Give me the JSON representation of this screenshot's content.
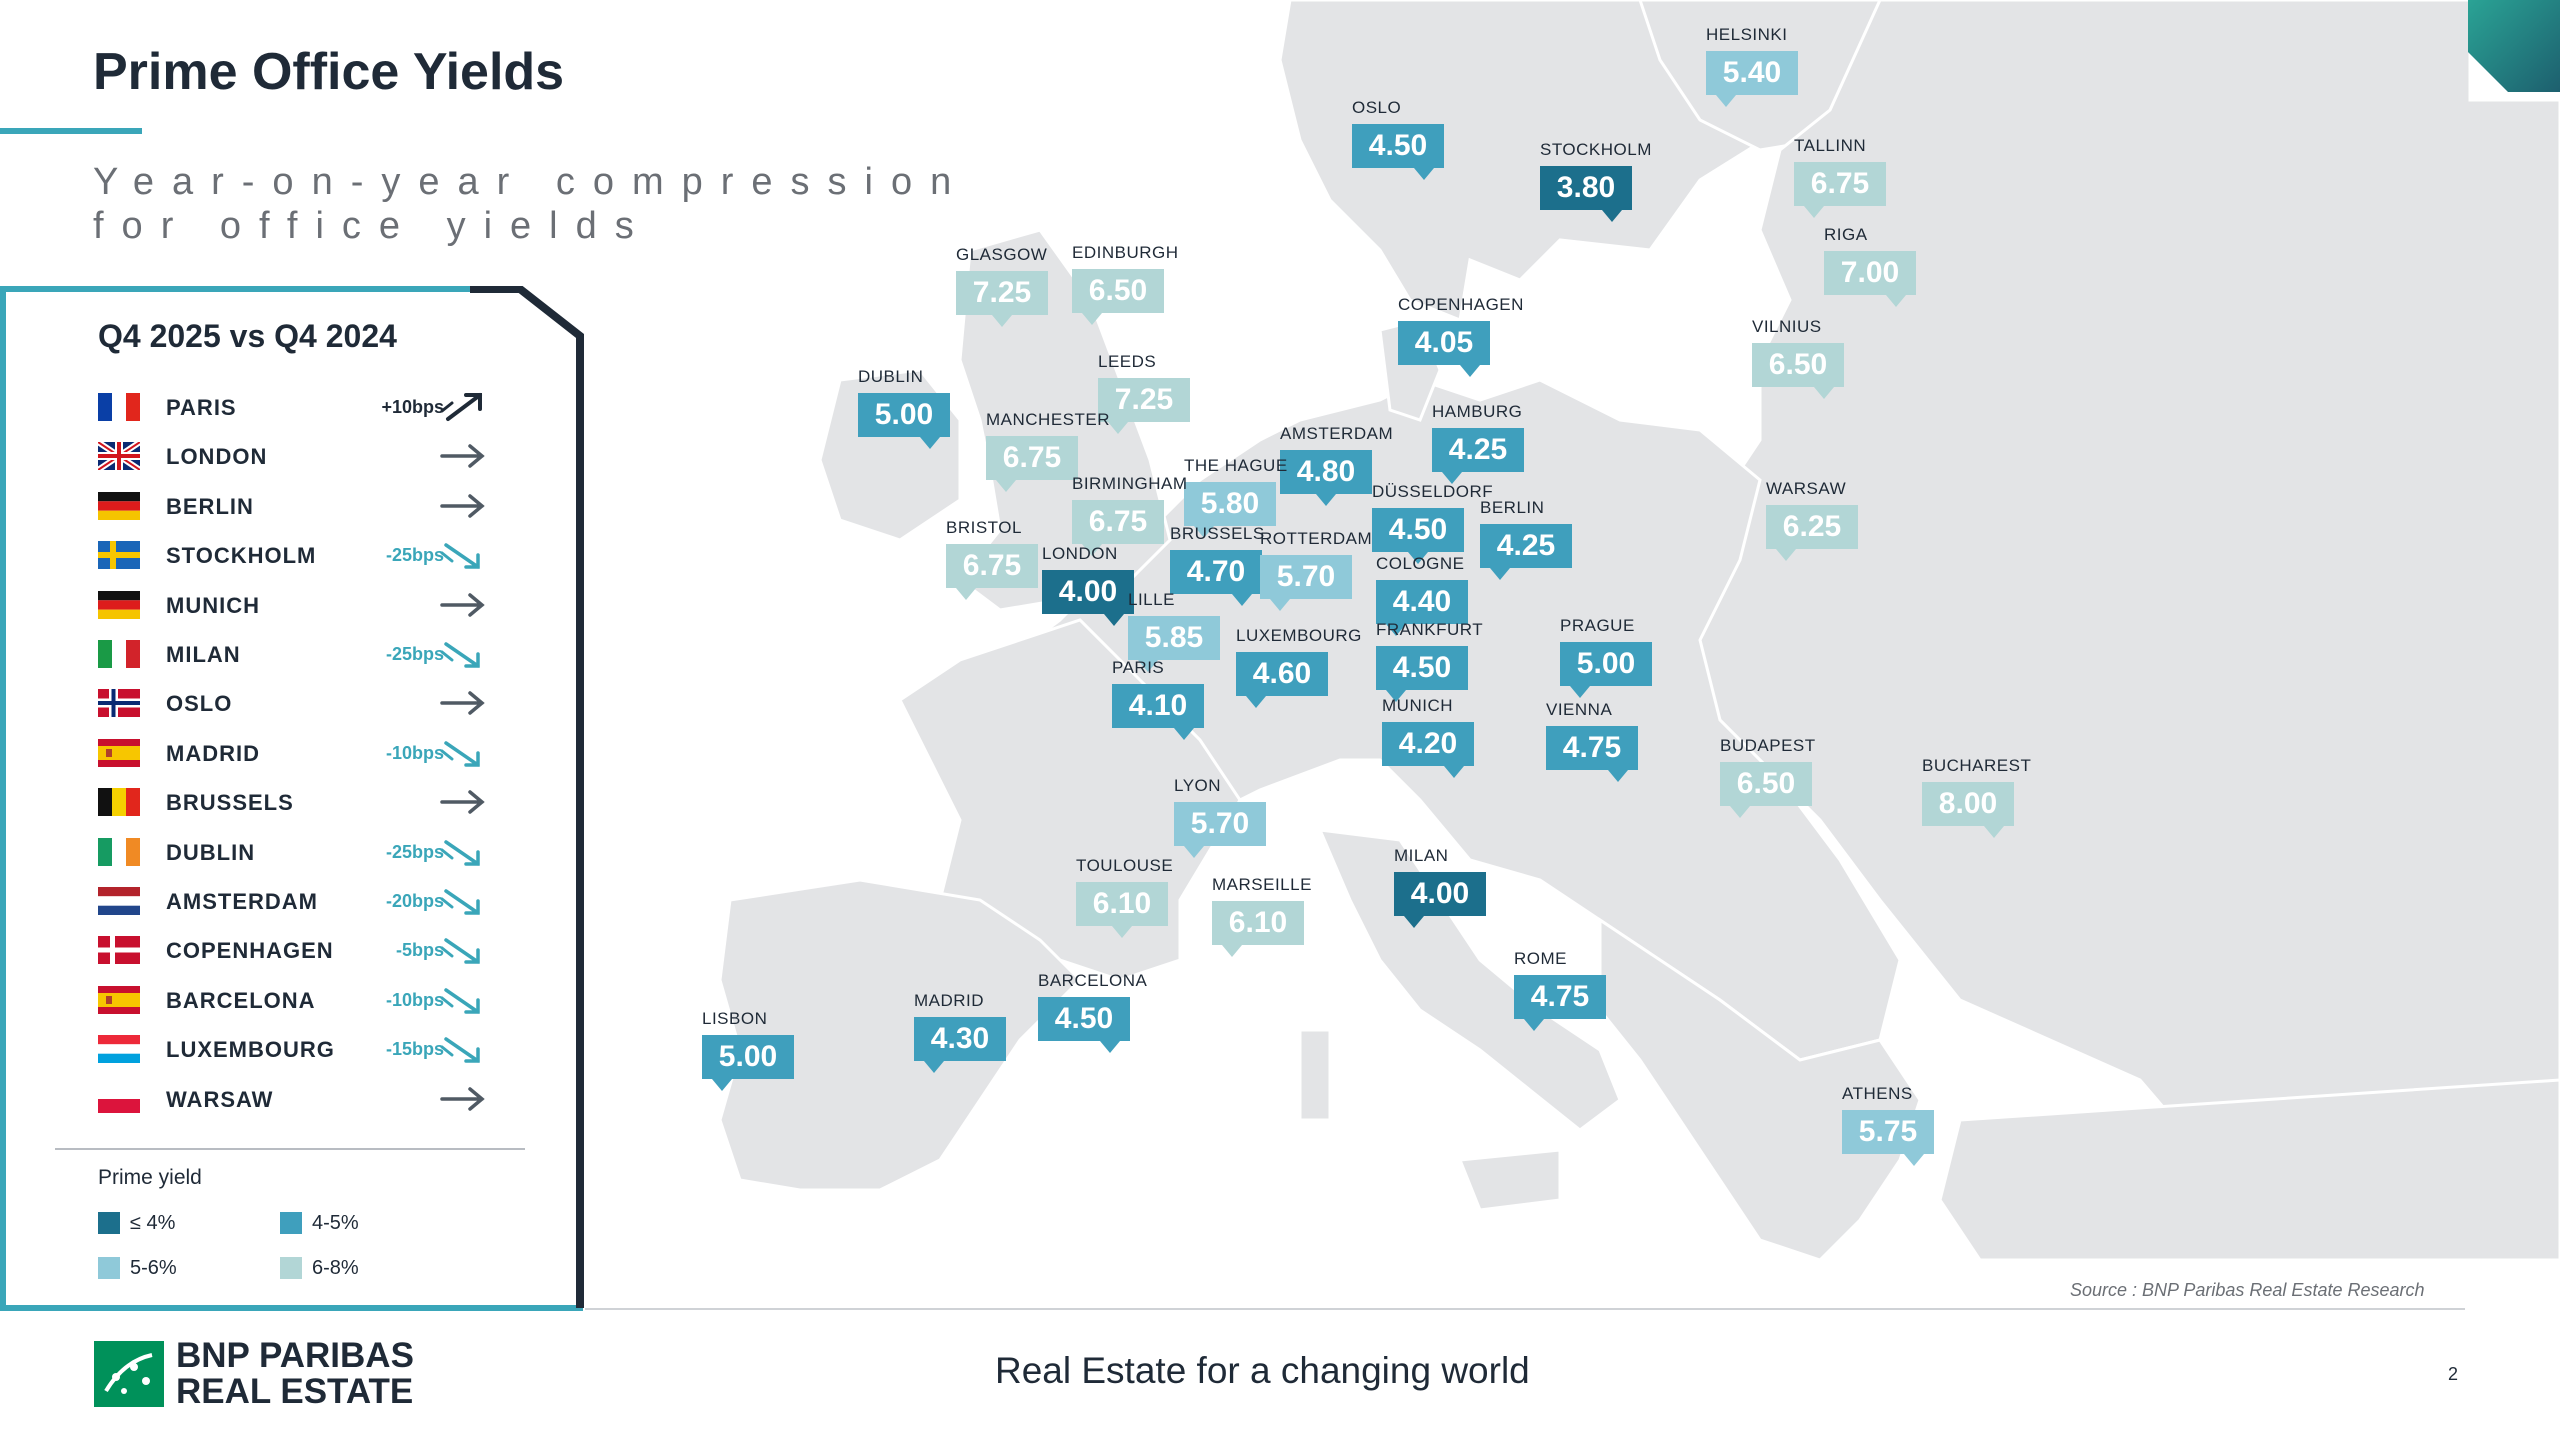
{
  "title": "Prime Office Yields",
  "subtitle": "Year-on-year compression for office yields",
  "panel": {
    "heading": "Q4 2025 vs Q4 2024",
    "rows": [
      {
        "city": "PARIS",
        "flag": "fr",
        "trend": "up",
        "change": "+10bps"
      },
      {
        "city": "LONDON",
        "flag": "uk",
        "trend": "flat",
        "change": ""
      },
      {
        "city": "BERLIN",
        "flag": "de",
        "trend": "flat",
        "change": ""
      },
      {
        "city": "STOCKHOLM",
        "flag": "se",
        "trend": "down",
        "change": "-25bps"
      },
      {
        "city": "MUNICH",
        "flag": "de",
        "trend": "flat",
        "change": ""
      },
      {
        "city": "MILAN",
        "flag": "it",
        "trend": "down",
        "change": "-25bps"
      },
      {
        "city": "OSLO",
        "flag": "no",
        "trend": "flat",
        "change": ""
      },
      {
        "city": "MADRID",
        "flag": "es",
        "trend": "down",
        "change": "-10bps"
      },
      {
        "city": "BRUSSELS",
        "flag": "be",
        "trend": "flat",
        "change": ""
      },
      {
        "city": "DUBLIN",
        "flag": "ie",
        "trend": "down",
        "change": "-25bps"
      },
      {
        "city": "AMSTERDAM",
        "flag": "nl",
        "trend": "down",
        "change": "-20bps"
      },
      {
        "city": "COPENHAGEN",
        "flag": "dk",
        "trend": "down",
        "change": "-5bps"
      },
      {
        "city": "BARCELONA",
        "flag": "es",
        "trend": "down",
        "change": "-10bps"
      },
      {
        "city": "LUXEMBOURG",
        "flag": "lu",
        "trend": "down",
        "change": "-15bps"
      },
      {
        "city": "WARSAW",
        "flag": "pl",
        "trend": "flat",
        "change": ""
      }
    ],
    "legend": {
      "title": "Prime yield",
      "items": [
        {
          "label": "≤ 4%",
          "color": "#1c6f8c"
        },
        {
          "label": "4-5%",
          "color": "#3f9fbd"
        },
        {
          "label": "5-6%",
          "color": "#8fc9d9"
        },
        {
          "label": "6-8%",
          "color": "#b2d6d6"
        }
      ]
    }
  },
  "colors": {
    "band1": "#1c6f8c",
    "band2": "#3f9fbd",
    "band3": "#8fc9d9",
    "band4": "#b2d6d6",
    "accent": "#3aa6b9"
  },
  "cities": [
    {
      "name": "HELSINKI",
      "yield": "5.40",
      "band": 3
    },
    {
      "name": "OSLO",
      "yield": "4.50",
      "band": 2
    },
    {
      "name": "STOCKHOLM",
      "yield": "3.80",
      "band": 1
    },
    {
      "name": "TALLINN",
      "yield": "6.75",
      "band": 4
    },
    {
      "name": "RIGA",
      "yield": "7.00",
      "band": 4
    },
    {
      "name": "GLASGOW",
      "yield": "7.25",
      "band": 4
    },
    {
      "name": "EDINBURGH",
      "yield": "6.50",
      "band": 4
    },
    {
      "name": "COPENHAGEN",
      "yield": "4.05",
      "band": 2
    },
    {
      "name": "VILNIUS",
      "yield": "6.50",
      "band": 4
    },
    {
      "name": "DUBLIN",
      "yield": "5.00",
      "band": 2
    },
    {
      "name": "LEEDS",
      "yield": "7.25",
      "band": 4
    },
    {
      "name": "MANCHESTER",
      "yield": "6.75",
      "band": 4
    },
    {
      "name": "AMSTERDAM",
      "yield": "4.80",
      "band": 2
    },
    {
      "name": "HAMBURG",
      "yield": "4.25",
      "band": 2
    },
    {
      "name": "THE HAGUE",
      "yield": "5.80",
      "band": 3
    },
    {
      "name": "BIRMINGHAM",
      "yield": "6.75",
      "band": 4
    },
    {
      "name": "WARSAW",
      "yield": "6.25",
      "band": 4
    },
    {
      "name": "DÜSSELDORF",
      "yield": "4.50",
      "band": 2
    },
    {
      "name": "BERLIN",
      "yield": "4.25",
      "band": 2
    },
    {
      "name": "BRISTOL",
      "yield": "6.75",
      "band": 4
    },
    {
      "name": "BRUSSELS",
      "yield": "4.70",
      "band": 2
    },
    {
      "name": "ROTTERDAM",
      "yield": "5.70",
      "band": 3
    },
    {
      "name": "LONDON",
      "yield": "4.00",
      "band": 1
    },
    {
      "name": "COLOGNE",
      "yield": "4.40",
      "band": 2
    },
    {
      "name": "LILLE",
      "yield": "5.85",
      "band": 3
    },
    {
      "name": "LUXEMBOURG",
      "yield": "4.60",
      "band": 2
    },
    {
      "name": "FRANKFURT",
      "yield": "4.50",
      "band": 2
    },
    {
      "name": "PRAGUE",
      "yield": "5.00",
      "band": 2
    },
    {
      "name": "PARIS",
      "yield": "4.10",
      "band": 2
    },
    {
      "name": "MUNICH",
      "yield": "4.20",
      "band": 2
    },
    {
      "name": "VIENNA",
      "yield": "4.75",
      "band": 2
    },
    {
      "name": "BUDAPEST",
      "yield": "6.50",
      "band": 4
    },
    {
      "name": "BUCHAREST",
      "yield": "8.00",
      "band": 4
    },
    {
      "name": "LYON",
      "yield": "5.70",
      "band": 3
    },
    {
      "name": "MILAN",
      "yield": "4.00",
      "band": 1
    },
    {
      "name": "TOULOUSE",
      "yield": "6.10",
      "band": 4
    },
    {
      "name": "MARSEILLE",
      "yield": "6.10",
      "band": 4
    },
    {
      "name": "BARCELONA",
      "yield": "4.50",
      "band": 2
    },
    {
      "name": "ROME",
      "yield": "4.75",
      "band": 2
    },
    {
      "name": "MADRID",
      "yield": "4.30",
      "band": 2
    },
    {
      "name": "LISBON",
      "yield": "5.00",
      "band": 2
    },
    {
      "name": "ATHENS",
      "yield": "5.75",
      "band": 3
    }
  ],
  "footer": {
    "source": "Source : BNP Paribas Real Estate Research",
    "tagline": "Real Estate for a changing world",
    "page": "2",
    "logo_line1": "BNP PARIBAS",
    "logo_line2": "REAL ESTATE"
  }
}
